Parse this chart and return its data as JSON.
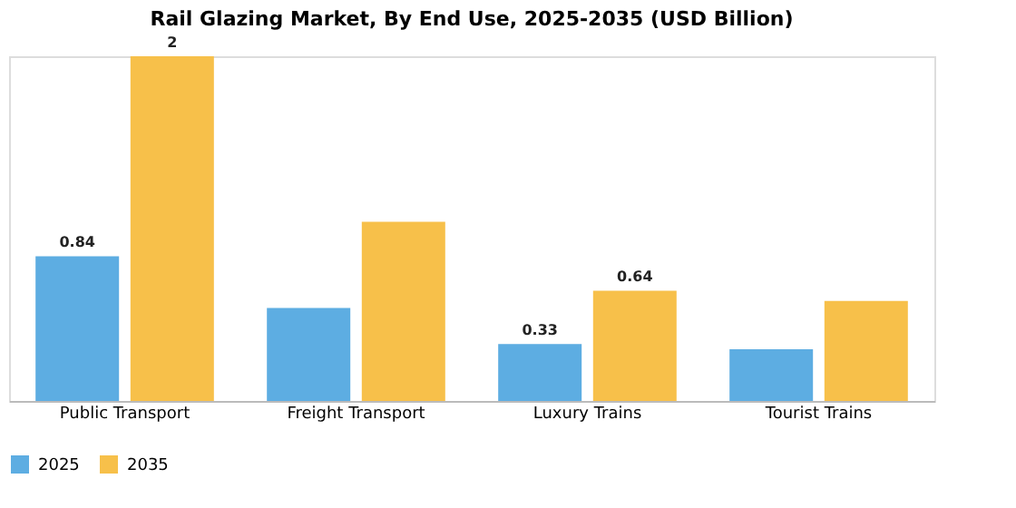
{
  "chart_data": {
    "type": "bar",
    "title": "Rail Glazing Market, By End Use, 2025-2035 (USD Billion)",
    "categories": [
      "Public Transport",
      "Freight Transport",
      "Luxury Trains",
      "Tourist Trains"
    ],
    "series": [
      {
        "name": "2025",
        "color": "#5dade2",
        "values": [
          0.84,
          0.54,
          0.33,
          0.3
        ],
        "value_labels": [
          "0.84",
          null,
          "0.33",
          null
        ]
      },
      {
        "name": "2035",
        "color": "#f7c04a",
        "values": [
          2,
          1.04,
          0.64,
          0.58
        ],
        "value_labels": [
          "2",
          null,
          "0.64",
          null
        ]
      }
    ],
    "legend": "bottom",
    "grid": false
  }
}
